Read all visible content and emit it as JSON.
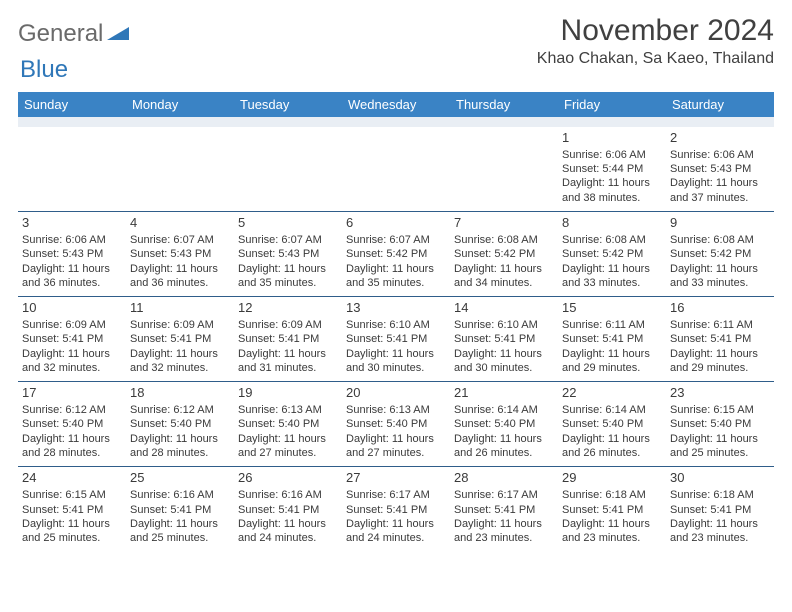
{
  "logo": {
    "word1": "General",
    "word2": "Blue"
  },
  "title": "November 2024",
  "location": "Khao Chakan, Sa Kaeo, Thailand",
  "colors": {
    "header_bg": "#3a83c5",
    "header_text": "#ffffff",
    "spacer_bg": "#e9eef4",
    "cell_border": "#2f5d8a",
    "logo_gray": "#6a6a6a",
    "logo_blue": "#2f77b8",
    "text": "#3a3a3a"
  },
  "day_headers": [
    "Sunday",
    "Monday",
    "Tuesday",
    "Wednesday",
    "Thursday",
    "Friday",
    "Saturday"
  ],
  "weeks": [
    [
      null,
      null,
      null,
      null,
      null,
      {
        "n": "1",
        "sr": "Sunrise: 6:06 AM",
        "ss": "Sunset: 5:44 PM",
        "dl": "Daylight: 11 hours and 38 minutes."
      },
      {
        "n": "2",
        "sr": "Sunrise: 6:06 AM",
        "ss": "Sunset: 5:43 PM",
        "dl": "Daylight: 11 hours and 37 minutes."
      }
    ],
    [
      {
        "n": "3",
        "sr": "Sunrise: 6:06 AM",
        "ss": "Sunset: 5:43 PM",
        "dl": "Daylight: 11 hours and 36 minutes."
      },
      {
        "n": "4",
        "sr": "Sunrise: 6:07 AM",
        "ss": "Sunset: 5:43 PM",
        "dl": "Daylight: 11 hours and 36 minutes."
      },
      {
        "n": "5",
        "sr": "Sunrise: 6:07 AM",
        "ss": "Sunset: 5:43 PM",
        "dl": "Daylight: 11 hours and 35 minutes."
      },
      {
        "n": "6",
        "sr": "Sunrise: 6:07 AM",
        "ss": "Sunset: 5:42 PM",
        "dl": "Daylight: 11 hours and 35 minutes."
      },
      {
        "n": "7",
        "sr": "Sunrise: 6:08 AM",
        "ss": "Sunset: 5:42 PM",
        "dl": "Daylight: 11 hours and 34 minutes."
      },
      {
        "n": "8",
        "sr": "Sunrise: 6:08 AM",
        "ss": "Sunset: 5:42 PM",
        "dl": "Daylight: 11 hours and 33 minutes."
      },
      {
        "n": "9",
        "sr": "Sunrise: 6:08 AM",
        "ss": "Sunset: 5:42 PM",
        "dl": "Daylight: 11 hours and 33 minutes."
      }
    ],
    [
      {
        "n": "10",
        "sr": "Sunrise: 6:09 AM",
        "ss": "Sunset: 5:41 PM",
        "dl": "Daylight: 11 hours and 32 minutes."
      },
      {
        "n": "11",
        "sr": "Sunrise: 6:09 AM",
        "ss": "Sunset: 5:41 PM",
        "dl": "Daylight: 11 hours and 32 minutes."
      },
      {
        "n": "12",
        "sr": "Sunrise: 6:09 AM",
        "ss": "Sunset: 5:41 PM",
        "dl": "Daylight: 11 hours and 31 minutes."
      },
      {
        "n": "13",
        "sr": "Sunrise: 6:10 AM",
        "ss": "Sunset: 5:41 PM",
        "dl": "Daylight: 11 hours and 30 minutes."
      },
      {
        "n": "14",
        "sr": "Sunrise: 6:10 AM",
        "ss": "Sunset: 5:41 PM",
        "dl": "Daylight: 11 hours and 30 minutes."
      },
      {
        "n": "15",
        "sr": "Sunrise: 6:11 AM",
        "ss": "Sunset: 5:41 PM",
        "dl": "Daylight: 11 hours and 29 minutes."
      },
      {
        "n": "16",
        "sr": "Sunrise: 6:11 AM",
        "ss": "Sunset: 5:41 PM",
        "dl": "Daylight: 11 hours and 29 minutes."
      }
    ],
    [
      {
        "n": "17",
        "sr": "Sunrise: 6:12 AM",
        "ss": "Sunset: 5:40 PM",
        "dl": "Daylight: 11 hours and 28 minutes."
      },
      {
        "n": "18",
        "sr": "Sunrise: 6:12 AM",
        "ss": "Sunset: 5:40 PM",
        "dl": "Daylight: 11 hours and 28 minutes."
      },
      {
        "n": "19",
        "sr": "Sunrise: 6:13 AM",
        "ss": "Sunset: 5:40 PM",
        "dl": "Daylight: 11 hours and 27 minutes."
      },
      {
        "n": "20",
        "sr": "Sunrise: 6:13 AM",
        "ss": "Sunset: 5:40 PM",
        "dl": "Daylight: 11 hours and 27 minutes."
      },
      {
        "n": "21",
        "sr": "Sunrise: 6:14 AM",
        "ss": "Sunset: 5:40 PM",
        "dl": "Daylight: 11 hours and 26 minutes."
      },
      {
        "n": "22",
        "sr": "Sunrise: 6:14 AM",
        "ss": "Sunset: 5:40 PM",
        "dl": "Daylight: 11 hours and 26 minutes."
      },
      {
        "n": "23",
        "sr": "Sunrise: 6:15 AM",
        "ss": "Sunset: 5:40 PM",
        "dl": "Daylight: 11 hours and 25 minutes."
      }
    ],
    [
      {
        "n": "24",
        "sr": "Sunrise: 6:15 AM",
        "ss": "Sunset: 5:41 PM",
        "dl": "Daylight: 11 hours and 25 minutes."
      },
      {
        "n": "25",
        "sr": "Sunrise: 6:16 AM",
        "ss": "Sunset: 5:41 PM",
        "dl": "Daylight: 11 hours and 25 minutes."
      },
      {
        "n": "26",
        "sr": "Sunrise: 6:16 AM",
        "ss": "Sunset: 5:41 PM",
        "dl": "Daylight: 11 hours and 24 minutes."
      },
      {
        "n": "27",
        "sr": "Sunrise: 6:17 AM",
        "ss": "Sunset: 5:41 PM",
        "dl": "Daylight: 11 hours and 24 minutes."
      },
      {
        "n": "28",
        "sr": "Sunrise: 6:17 AM",
        "ss": "Sunset: 5:41 PM",
        "dl": "Daylight: 11 hours and 23 minutes."
      },
      {
        "n": "29",
        "sr": "Sunrise: 6:18 AM",
        "ss": "Sunset: 5:41 PM",
        "dl": "Daylight: 11 hours and 23 minutes."
      },
      {
        "n": "30",
        "sr": "Sunrise: 6:18 AM",
        "ss": "Sunset: 5:41 PM",
        "dl": "Daylight: 11 hours and 23 minutes."
      }
    ]
  ]
}
